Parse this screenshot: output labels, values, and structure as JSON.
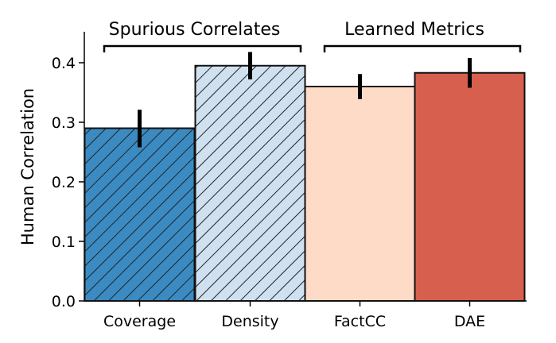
{
  "chart_data": {
    "type": "bar",
    "ylabel": "Human Correlation",
    "xlabel": "",
    "ylim": [
      0,
      0.45
    ],
    "yticks": [
      0.0,
      0.1,
      0.2,
      0.3,
      0.4
    ],
    "ytick_labels": [
      "0.0",
      "0.1",
      "0.2",
      "0.3",
      "0.4"
    ],
    "categories": [
      "Coverage",
      "Density",
      "FactCC",
      "DAE"
    ],
    "values": [
      0.29,
      0.395,
      0.36,
      0.383
    ],
    "error_low": [
      0.258,
      0.372,
      0.339,
      0.358
    ],
    "error_high": [
      0.321,
      0.418,
      0.381,
      0.408
    ],
    "colors": [
      "#3b8bc2",
      "#cfe1f0",
      "#fddbc7",
      "#d6604d"
    ],
    "hatched": [
      true,
      true,
      false,
      false
    ],
    "hatch_color": "#222222",
    "groups": [
      {
        "label": "Spurious Correlates",
        "start": 0,
        "end": 1
      },
      {
        "label": "Learned Metrics",
        "start": 2,
        "end": 3
      }
    ],
    "grid": false
  }
}
